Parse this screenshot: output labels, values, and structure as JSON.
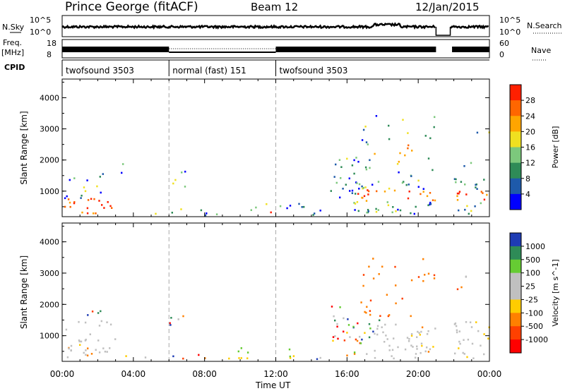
{
  "header": {
    "station": "Prince George (fitACF)",
    "beam": "Beam 12",
    "date": "12/Jan/2015"
  },
  "panels": {
    "nsky": {
      "left_label": "N.Sky",
      "right_label": "N.Search",
      "left_ticks": [
        "10^5",
        "10^0"
      ],
      "right_ticks": [
        "10^5",
        "10^0"
      ]
    },
    "freq": {
      "left_label_line1": "Freq.",
      "left_label_line2": "[MHz]",
      "right_label": "Nave",
      "left_ticks": [
        "18",
        "8"
      ],
      "right_ticks": [
        "60",
        "0"
      ]
    },
    "cpid": {
      "label": "CPID",
      "segments": [
        {
          "label": "twofsound 3503",
          "start_h": 0,
          "end_h": 6
        },
        {
          "label": "normal (fast) 151",
          "start_h": 6,
          "end_h": 12
        },
        {
          "label": "twofsound 3503",
          "start_h": 12,
          "end_h": 24
        }
      ]
    }
  },
  "chart_data": [
    {
      "type": "heatmap",
      "name": "power",
      "ylabel": "Slant Range [km]",
      "ylim": [
        180,
        4600
      ],
      "yticks": [
        "1000",
        "2000",
        "3000",
        "4000"
      ],
      "colorbar_label": "Power [dB]",
      "colorbar_ticks": [
        "4",
        "8",
        "12",
        "16",
        "20",
        "24",
        "28"
      ],
      "colors": [
        "#0000ff",
        "#1e5aaa",
        "#2e8b57",
        "#7cc87c",
        "#f0e020",
        "#ffa500",
        "#ff6600",
        "#ff2000"
      ]
    },
    {
      "type": "heatmap",
      "name": "velocity",
      "ylabel": "Slant Range [km]",
      "ylim": [
        180,
        4600
      ],
      "yticks": [
        "1000",
        "2000",
        "3000",
        "4000"
      ],
      "colorbar_label": "Velocity [m s^-1]",
      "colorbar_ticks": [
        "1000",
        "500",
        "100",
        "25",
        "-25",
        "-100",
        "-500",
        "-1000"
      ],
      "colors": [
        "#1e3cb4",
        "#2e8b57",
        "#66cc33",
        "#c0c0c0",
        "#c0c0c0",
        "#ffcc00",
        "#ff8000",
        "#ff4000",
        "#ff0000"
      ]
    }
  ],
  "xaxis": {
    "label": "Time UT",
    "ticks": [
      "00:00",
      "04:00",
      "08:00",
      "12:00",
      "16:00",
      "20:00",
      "00:00"
    ]
  }
}
